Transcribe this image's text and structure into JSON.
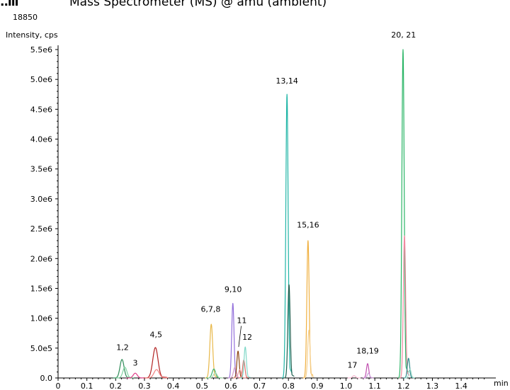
{
  "header": {
    "mark": "..lll",
    "title": "Mass Spectrometer (MS) @ amu (ambient)",
    "scan_value": "18850"
  },
  "chart_data": {
    "type": "line",
    "title": "",
    "xlabel": "min",
    "ylabel": "Intensity, cps",
    "xlim": [
      0,
      1.5
    ],
    "ylim": [
      0,
      5500000
    ],
    "x_ticks": [
      "0",
      "0.1",
      "0.2",
      "0.3",
      "0.4",
      "0.5",
      "0.6",
      "0.7",
      "0.8",
      "0.9",
      "1.0",
      "1.1",
      "1.2",
      "1.3",
      "1.4"
    ],
    "x_tick_values": [
      0,
      0.1,
      0.2,
      0.3,
      0.4,
      0.5,
      0.6,
      0.7,
      0.8,
      0.9,
      1.0,
      1.1,
      1.2,
      1.3,
      1.4
    ],
    "y_ticks": [
      "0.0",
      "5.0e5",
      "1.0e6",
      "1.5e6",
      "2.0e6",
      "2.5e6",
      "3.0e6",
      "3.5e6",
      "4.0e6",
      "4.5e6",
      "5.0e6",
      "5.5e6"
    ],
    "y_tick_values": [
      0,
      500000,
      1000000,
      1500000,
      2000000,
      2500000,
      3000000,
      3500000,
      4000000,
      4500000,
      5000000,
      5500000
    ],
    "grid": false,
    "legend": "none",
    "series": [
      {
        "color": "#2e8b57",
        "peaks": [
          {
            "rt": 0.222,
            "height": 310000,
            "width": 0.007
          }
        ]
      },
      {
        "color": "#7fd3a0",
        "peaks": [
          {
            "rt": 0.232,
            "height": 180000,
            "width": 0.007
          }
        ]
      },
      {
        "color": "#e0408a",
        "peaks": [
          {
            "rt": 0.268,
            "height": 80000,
            "width": 0.007
          }
        ]
      },
      {
        "color": "#b22222",
        "peaks": [
          {
            "rt": 0.338,
            "height": 510000,
            "width": 0.009
          }
        ]
      },
      {
        "color": "#f08080",
        "peaks": [
          {
            "rt": 0.342,
            "height": 140000,
            "width": 0.009
          }
        ]
      },
      {
        "color": "#e8b84a",
        "peaks": [
          {
            "rt": 0.532,
            "height": 900000,
            "width": 0.005
          }
        ]
      },
      {
        "color": "#3cb371",
        "peaks": [
          {
            "rt": 0.541,
            "height": 150000,
            "width": 0.006
          }
        ]
      },
      {
        "color": "#b0d8b0",
        "peaks": [
          {
            "rt": 0.546,
            "height": 90000,
            "width": 0.006
          }
        ]
      },
      {
        "color": "#9370db",
        "peaks": [
          {
            "rt": 0.607,
            "height": 1250000,
            "width": 0.004
          }
        ]
      },
      {
        "color": "#d8a0c8",
        "peaks": [
          {
            "rt": 0.614,
            "height": 180000,
            "width": 0.005
          }
        ]
      },
      {
        "color": "#8b4513",
        "peaks": [
          {
            "rt": 0.625,
            "height": 450000,
            "width": 0.004
          }
        ]
      },
      {
        "color": "#f4a6a6",
        "peaks": [
          {
            "rt": 0.631,
            "height": 140000,
            "width": 0.005
          }
        ]
      },
      {
        "color": "#e0706a",
        "peaks": [
          {
            "rt": 0.645,
            "height": 300000,
            "width": 0.004
          }
        ]
      },
      {
        "color": "#80d8c8",
        "peaks": [
          {
            "rt": 0.65,
            "height": 520000,
            "width": 0.004
          }
        ]
      },
      {
        "color": "#1fb5a6",
        "peaks": [
          {
            "rt": 0.795,
            "height": 4750000,
            "width": 0.004
          }
        ]
      },
      {
        "color": "#1e5e4e",
        "peaks": [
          {
            "rt": 0.802,
            "height": 1560000,
            "width": 0.004
          }
        ]
      },
      {
        "color": "#f0b040",
        "peaks": [
          {
            "rt": 0.868,
            "height": 2300000,
            "width": 0.004
          }
        ]
      },
      {
        "color": "#f5d090",
        "peaks": [
          {
            "rt": 0.871,
            "height": 800000,
            "width": 0.004
          }
        ]
      },
      {
        "color": "#f6b8d0",
        "peaks": [
          {
            "rt": 1.028,
            "height": 40000,
            "width": 0.005
          }
        ]
      },
      {
        "color": "#c050b0",
        "peaks": [
          {
            "rt": 1.075,
            "height": 240000,
            "width": 0.004
          }
        ]
      },
      {
        "color": "#c8a0d8",
        "peaks": [
          {
            "rt": 1.078,
            "height": 80000,
            "width": 0.004
          }
        ]
      },
      {
        "color": "#2ab566",
        "peaks": [
          {
            "rt": 1.198,
            "height": 5500000,
            "width": 0.004
          }
        ]
      },
      {
        "color": "#f08aa0",
        "peaks": [
          {
            "rt": 1.203,
            "height": 2380000,
            "width": 0.004
          }
        ]
      },
      {
        "color": "#2e8b8b",
        "peaks": [
          {
            "rt": 1.217,
            "height": 330000,
            "width": 0.004
          }
        ]
      },
      {
        "color": "#9ad8c8",
        "peaks": [
          {
            "rt": 1.222,
            "height": 150000,
            "width": 0.004
          }
        ]
      }
    ],
    "annotations": [
      {
        "text": "1,2",
        "x": 0.224,
        "y": 470000
      },
      {
        "text": "3",
        "x": 0.268,
        "y": 210000
      },
      {
        "text": "4,5",
        "x": 0.34,
        "y": 680000
      },
      {
        "text": "6,7,8",
        "x": 0.53,
        "y": 1110000
      },
      {
        "text": "9,10",
        "x": 0.608,
        "y": 1440000
      },
      {
        "text": "11",
        "x": 0.638,
        "y": 920000
      },
      {
        "text": "12",
        "x": 0.657,
        "y": 640000
      },
      {
        "text": "13,14",
        "x": 0.795,
        "y": 4930000
      },
      {
        "text": "15,16",
        "x": 0.868,
        "y": 2520000
      },
      {
        "text": "17",
        "x": 1.022,
        "y": 170000
      },
      {
        "text": "18,19",
        "x": 1.075,
        "y": 410000
      },
      {
        "text": "20, 21",
        "x": 1.2,
        "y": 5700000
      }
    ]
  }
}
